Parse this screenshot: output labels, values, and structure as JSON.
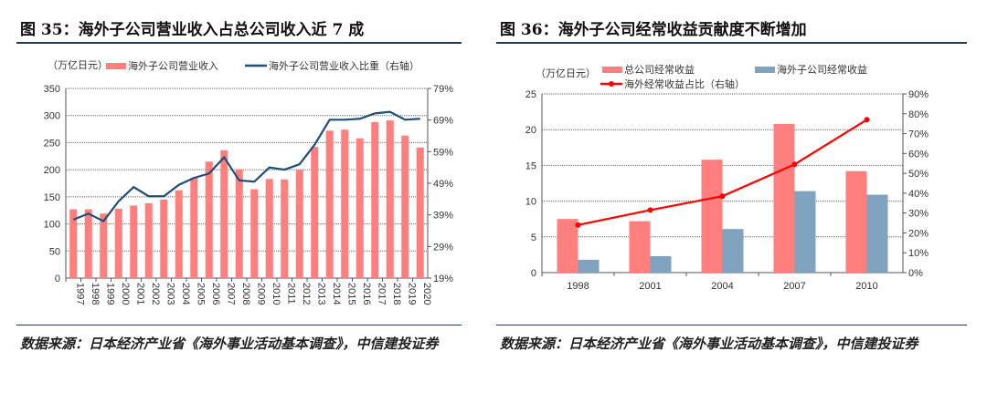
{
  "left": {
    "title": "图 35：海外子公司营业收入占总公司收入近 7 成",
    "source": "数据来源：日本经济产业省《海外事业活动基本调查》，中信建投证券"
  },
  "right": {
    "title": "图 36：海外子公司经常收益贡献度不断增加",
    "source": "数据来源：日本经济产业省《海外事业活动基本调查》，中信建投证券"
  },
  "chart_data": [
    {
      "type": "bar",
      "unit_label": "（万亿日元）",
      "categories": [
        "1997",
        "1998",
        "1999",
        "2000",
        "2001",
        "2002",
        "2003",
        "2004",
        "2005",
        "2006",
        "2007",
        "2008",
        "2009",
        "2010",
        "2011",
        "2012",
        "2013",
        "2014",
        "2015",
        "2016",
        "2017",
        "2018",
        "2019",
        "2020"
      ],
      "series": [
        {
          "name": "海外子公司营业收入",
          "axis": "left",
          "type": "bar",
          "color": "#ff7f7f",
          "values": [
            127,
            127,
            119,
            128,
            134,
            138,
            145,
            162,
            185,
            215,
            236,
            201,
            164,
            183,
            182,
            200,
            242,
            272,
            274,
            258,
            288,
            291,
            263,
            241
          ]
        },
        {
          "name": "海外子公司营业收入比重（右轴）",
          "axis": "right",
          "type": "line",
          "color": "#1f4e79",
          "values": [
            37.5,
            39.4,
            37,
            43.3,
            47.8,
            44.9,
            44.9,
            48.5,
            50.7,
            52.1,
            57.2,
            49.9,
            49.5,
            54,
            53.3,
            55,
            61.2,
            69.1,
            69.1,
            69.4,
            71.1,
            71.6,
            69.1,
            69.4
          ]
        }
      ],
      "ylim": [
        0,
        350
      ],
      "yticks": [
        "0",
        "50",
        "100",
        "150",
        "200",
        "250",
        "300",
        "350"
      ],
      "y2lim": [
        19,
        79
      ],
      "y2ticks": [
        "19%",
        "29%",
        "39%",
        "49%",
        "59%",
        "69%",
        "79%"
      ],
      "grid": true,
      "legend": "top"
    },
    {
      "type": "bar",
      "unit_label": "（万亿日元）",
      "categories": [
        "1998",
        "2001",
        "2004",
        "2007",
        "2010"
      ],
      "series": [
        {
          "name": "总公司经常收益",
          "axis": "left",
          "type": "bar",
          "color": "#ff7f7f",
          "values": [
            7.5,
            7.2,
            15.8,
            20.8,
            14.2
          ]
        },
        {
          "name": "海外子公司经常收益",
          "axis": "left",
          "type": "bar",
          "color": "#7fa3bf",
          "values": [
            1.8,
            2.3,
            6.1,
            11.4,
            10.9
          ]
        },
        {
          "name": "海外经常收益占比（右轴）",
          "axis": "right",
          "type": "line",
          "color": "#ff0000",
          "values": [
            24,
            31.5,
            38.5,
            54.5,
            77
          ]
        }
      ],
      "ylim": [
        0,
        25
      ],
      "yticks": [
        "0",
        "5",
        "10",
        "15",
        "20",
        "25"
      ],
      "y2lim": [
        0,
        90
      ],
      "y2ticks": [
        "0%",
        "10%",
        "20%",
        "30%",
        "40%",
        "50%",
        "60%",
        "70%",
        "80%",
        "90%"
      ],
      "grid": true,
      "legend": "top"
    }
  ]
}
